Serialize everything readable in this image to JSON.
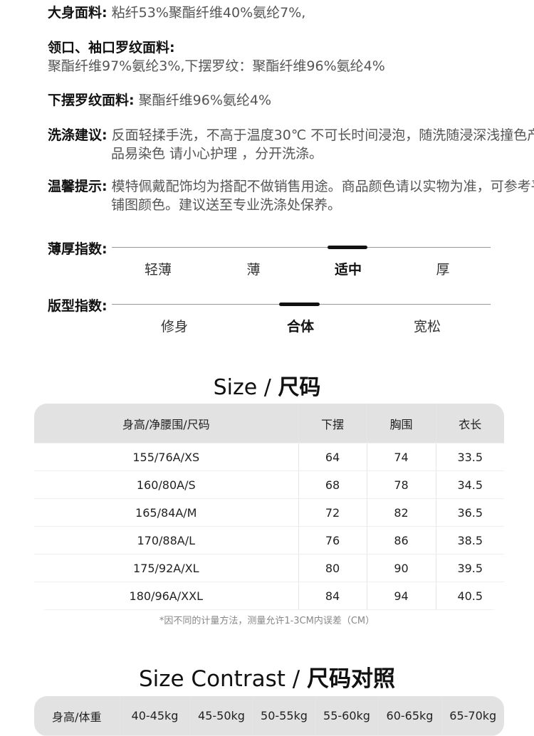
{
  "fabric": [
    {
      "label": "大身面料:",
      "value": "粘纤53%聚酯纤维40%氨纶7%,"
    },
    {
      "label": "领口、袖口罗纹面料:",
      "value": "聚酯纤维97%氨纶3%,下摆罗纹：聚酯纤维96%氨纶4%"
    },
    {
      "label": "下摆罗纹面料:",
      "value": "聚酯纤维96%氨纶4%"
    },
    {
      "label": "洗涤建议:",
      "value": "反面轻揉手洗，不高于温度30℃ 不可长时间浸泡，随洗随浸深浅撞色产品易染色 请小心护理 ，分开洗涤。"
    },
    {
      "label": "温馨提示:",
      "value": "模特佩戴配饰均为搭配不做销售用途。商品颜色请以实物为准，可参考平铺图颜色。建议送至专业洗涤处保养。"
    }
  ],
  "thickness": {
    "label": "薄厚指数:",
    "options": [
      "轻薄",
      "薄",
      "适中",
      "厚"
    ],
    "selected": "适中"
  },
  "fit": {
    "label": "版型指数:",
    "options": [
      "修身",
      "合体",
      "宽松"
    ],
    "selected": "合体"
  },
  "size": {
    "title_en": "Size / ",
    "title_cn": "尺码",
    "headers": [
      "身高/净腰围/尺码",
      "下摆",
      "胸围",
      "衣长"
    ],
    "rows": [
      [
        "155/76A/XS",
        "64",
        "74",
        "33.5"
      ],
      [
        "160/80A/S",
        "68",
        "78",
        "34.5"
      ],
      [
        "165/84A/M",
        "72",
        "82",
        "36.5"
      ],
      [
        "170/88A/L",
        "76",
        "86",
        "38.5"
      ],
      [
        "175/92A/XL",
        "80",
        "90",
        "39.5"
      ],
      [
        "180/96A/XXL",
        "84",
        "94",
        "40.5"
      ]
    ],
    "note": "*因不同的计量方法，测量允许1-3CM内误差（CM）"
  },
  "contrast": {
    "title_en": "Size Contrast / ",
    "title_cn": "尺码对照",
    "headers": [
      "身高/体重",
      "40-45kg",
      "45-50kg",
      "50-55kg",
      "55-60kg",
      "60-65kg",
      "65-70kg"
    ]
  }
}
